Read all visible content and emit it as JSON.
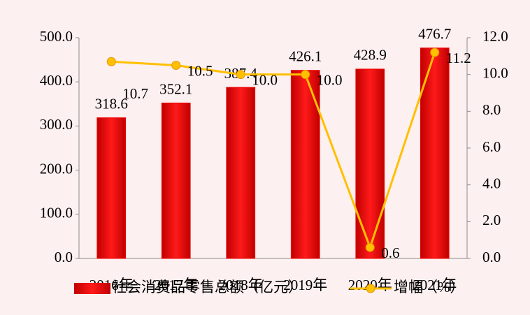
{
  "chart_data": {
    "type": "bar_line",
    "categories": [
      "2016年",
      "2017年",
      "2018年",
      "2019年",
      "2020年",
      "2021年"
    ],
    "series": [
      {
        "name": "社会消费品零售总额（亿元）",
        "color": "#ee0000",
        "type": "bar",
        "values": [
          318.6,
          352.1,
          387.4,
          426.1,
          428.9,
          476.7
        ]
      },
      {
        "name": "增幅（%）",
        "color": "#ffc000",
        "type": "line",
        "axis": "y2",
        "values": [
          10.7,
          10.5,
          10.0,
          10.0,
          0.6,
          11.2
        ],
        "value_labels": [
          "10.7",
          "10.5",
          "10.0",
          "10.0",
          "0.6",
          "11.2"
        ]
      }
    ],
    "ylim": [
      0,
      500
    ],
    "yticks": [
      {
        "value": 0,
        "label": "0.0"
      },
      {
        "value": 100,
        "label": "100.0"
      },
      {
        "value": 200,
        "label": "200.0"
      },
      {
        "value": 300,
        "label": "300.0"
      },
      {
        "value": 400,
        "label": "400.0"
      },
      {
        "value": 500,
        "label": "500.0"
      }
    ],
    "y2lim": [
      0,
      12
    ],
    "y2ticks": [
      {
        "value": 0,
        "label": "0.0"
      },
      {
        "value": 2,
        "label": "2.0"
      },
      {
        "value": 4,
        "label": "4.0"
      },
      {
        "value": 6,
        "label": "6.0"
      },
      {
        "value": 8,
        "label": "8.0"
      },
      {
        "value": 10,
        "label": "10.0"
      },
      {
        "value": 12,
        "label": "12.0"
      }
    ],
    "grid": false,
    "legend": "bottom"
  }
}
